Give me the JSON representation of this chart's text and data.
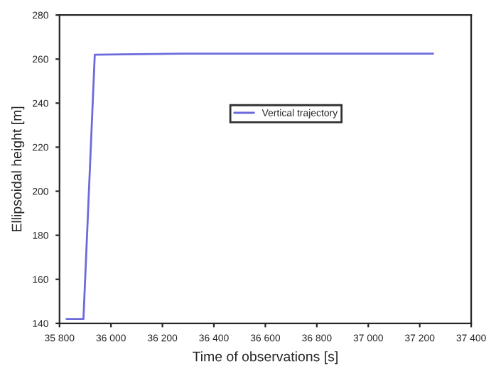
{
  "chart_data": {
    "type": "line",
    "xlabel": "Time of observations [s]",
    "ylabel": "Ellipsoidal height [m]",
    "series": [
      {
        "name": "Vertical trajectory",
        "color": "#6b6bdd",
        "x": [
          35827,
          35893,
          35937,
          36100,
          36300,
          36600,
          37000,
          37252
        ],
        "values": [
          142,
          142,
          262,
          262.2,
          262.5,
          262.5,
          262.5,
          262.5
        ]
      }
    ],
    "xlim": [
      35800,
      37400
    ],
    "ylim": [
      140,
      280
    ],
    "xticks": [
      {
        "value": 35800,
        "label": "35 800"
      },
      {
        "value": 36000,
        "label": "36 000"
      },
      {
        "value": 36200,
        "label": "36 200"
      },
      {
        "value": 36400,
        "label": "36 400"
      },
      {
        "value": 36600,
        "label": "36 600"
      },
      {
        "value": 36800,
        "label": "36 800"
      },
      {
        "value": 37000,
        "label": "37 000"
      },
      {
        "value": 37200,
        "label": "37 200"
      },
      {
        "value": 37400,
        "label": "37 400"
      }
    ],
    "yticks": [
      140,
      160,
      180,
      200,
      220,
      240,
      260,
      280
    ],
    "legend": "center",
    "grid": false,
    "line_style": "solid",
    "marker": "none"
  }
}
